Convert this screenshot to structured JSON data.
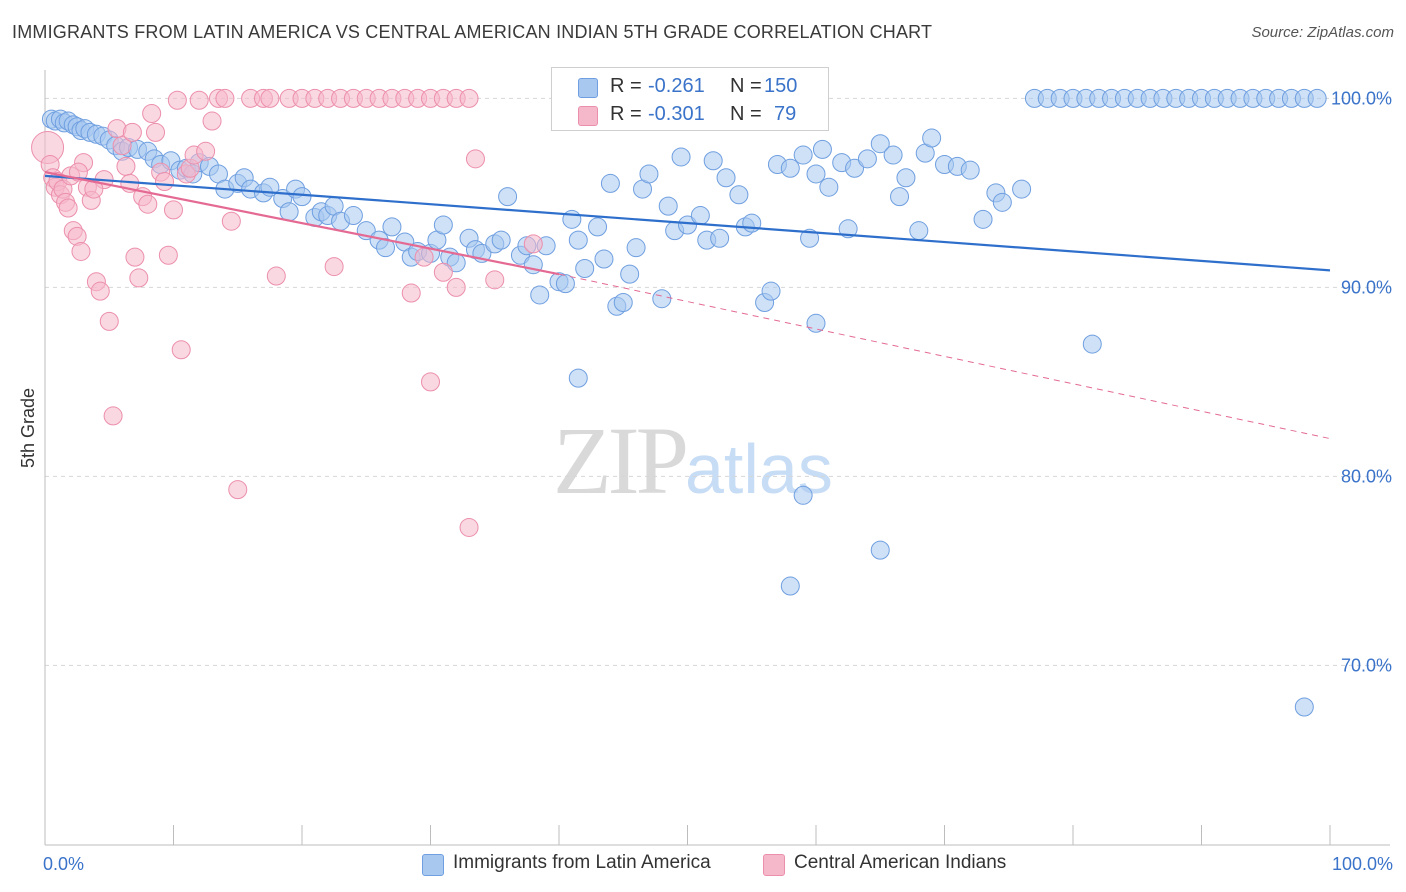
{
  "title": "IMMIGRANTS FROM LATIN AMERICA VS CENTRAL AMERICAN INDIAN 5TH GRADE CORRELATION CHART",
  "source": "Source: ZipAtlas.com",
  "watermark": {
    "zip": "ZIP",
    "atlas": "atlas"
  },
  "legend_top": {
    "rows": [
      {
        "r_label": "R =",
        "r_value": "-0.261",
        "n_label": "N =",
        "n_value": "150",
        "color": "#a8c8f0"
      },
      {
        "r_label": "R =",
        "r_value": "-0.301",
        "n_label": "N =",
        "n_value": "79",
        "color": "#f5b8cb"
      }
    ]
  },
  "colors": {
    "blue_fill": "#a8c8f0",
    "blue_stroke": "#6f9fe0",
    "blue_line": "#2f6fcc",
    "pink_fill": "#f5b8cb",
    "pink_stroke": "#ec8fac",
    "pink_line": "#e46a93",
    "grid": "#d6d6d6",
    "axis_text": "#3a73c9"
  },
  "chart_data": {
    "type": "scatter",
    "title": "IMMIGRANTS FROM LATIN AMERICA VS CENTRAL AMERICAN INDIAN 5TH GRADE CORRELATION CHART",
    "xlabel": "",
    "ylabel": "5th Grade",
    "xlim": [
      0,
      100
    ],
    "ylim": [
      60.5,
      101.5
    ],
    "x_tick_labels": [
      "0.0%",
      "100.0%"
    ],
    "y_ticks": [
      {
        "value": 100,
        "label": "100.0%"
      },
      {
        "value": 90,
        "label": "90.0%"
      },
      {
        "value": 80,
        "label": "80.0%"
      },
      {
        "value": 70,
        "label": "70.0%"
      }
    ],
    "grid": true,
    "legend_position": "bottom",
    "series": [
      {
        "name": "Immigrants from Latin America",
        "color": "#a8c8f0",
        "trend": {
          "x": [
            0,
            100
          ],
          "y": [
            95.9,
            90.9
          ],
          "dashed_to": 100
        },
        "points": [
          [
            0.5,
            98.9
          ],
          [
            0.8,
            98.8
          ],
          [
            1.2,
            98.9
          ],
          [
            1.5,
            98.7
          ],
          [
            1.8,
            98.8
          ],
          [
            2.2,
            98.6
          ],
          [
            2.5,
            98.5
          ],
          [
            2.8,
            98.3
          ],
          [
            3.1,
            98.4
          ],
          [
            3.5,
            98.2
          ],
          [
            4,
            98.1
          ],
          [
            4.5,
            98
          ],
          [
            5,
            97.8
          ],
          [
            5.5,
            97.5
          ],
          [
            6,
            97.2
          ],
          [
            6.5,
            97.4
          ],
          [
            7.2,
            97.3
          ],
          [
            8,
            97.2
          ],
          [
            8.5,
            96.8
          ],
          [
            9,
            96.5
          ],
          [
            9.8,
            96.7
          ],
          [
            10.5,
            96.2
          ],
          [
            11,
            96.3
          ],
          [
            11.5,
            96
          ],
          [
            12,
            96.6
          ],
          [
            12.8,
            96.4
          ],
          [
            13.5,
            96
          ],
          [
            14,
            95.2
          ],
          [
            15,
            95.5
          ],
          [
            15.5,
            95.8
          ],
          [
            16,
            95.2
          ],
          [
            17,
            95
          ],
          [
            17.5,
            95.3
          ],
          [
            18.5,
            94.7
          ],
          [
            19,
            94
          ],
          [
            19.5,
            95.2
          ],
          [
            20,
            94.8
          ],
          [
            21,
            93.7
          ],
          [
            21.5,
            94
          ],
          [
            22,
            93.8
          ],
          [
            22.5,
            94.3
          ],
          [
            23,
            93.5
          ],
          [
            24,
            93.8
          ],
          [
            25,
            93
          ],
          [
            26,
            92.5
          ],
          [
            26.5,
            92.1
          ],
          [
            27,
            93.2
          ],
          [
            28,
            92.4
          ],
          [
            28.5,
            91.6
          ],
          [
            29,
            91.9
          ],
          [
            30,
            91.8
          ],
          [
            30.5,
            92.5
          ],
          [
            31,
            93.3
          ],
          [
            31.5,
            91.6
          ],
          [
            32,
            91.3
          ],
          [
            33,
            92.6
          ],
          [
            33.5,
            92
          ],
          [
            34,
            91.8
          ],
          [
            35,
            92.3
          ],
          [
            35.5,
            92.5
          ],
          [
            36,
            94.8
          ],
          [
            37,
            91.7
          ],
          [
            37.5,
            92.2
          ],
          [
            38,
            91.2
          ],
          [
            38.5,
            89.6
          ],
          [
            39,
            92.2
          ],
          [
            40,
            90.3
          ],
          [
            40.5,
            90.2
          ],
          [
            41,
            93.6
          ],
          [
            41.5,
            92.5
          ],
          [
            42,
            91
          ],
          [
            43,
            93.2
          ],
          [
            43.5,
            91.5
          ],
          [
            44,
            95.5
          ],
          [
            44.5,
            89
          ],
          [
            45,
            89.2
          ],
          [
            45.5,
            90.7
          ],
          [
            46,
            92.1
          ],
          [
            46.5,
            95.2
          ],
          [
            47,
            96
          ],
          [
            48,
            89.4
          ],
          [
            48.5,
            94.3
          ],
          [
            49,
            93
          ],
          [
            49.5,
            96.9
          ],
          [
            50,
            93.3
          ],
          [
            51,
            93.8
          ],
          [
            51.5,
            92.5
          ],
          [
            52,
            96.7
          ],
          [
            52.5,
            92.6
          ],
          [
            53,
            95.8
          ],
          [
            54,
            94.9
          ],
          [
            54.5,
            93.2
          ],
          [
            55,
            93.4
          ],
          [
            56,
            89.2
          ],
          [
            56.5,
            89.8
          ],
          [
            57,
            96.5
          ],
          [
            58,
            96.3
          ],
          [
            59,
            97
          ],
          [
            60,
            96
          ],
          [
            60.5,
            97.3
          ],
          [
            61,
            95.3
          ],
          [
            62,
            96.6
          ],
          [
            62.5,
            93.1
          ],
          [
            63,
            96.3
          ],
          [
            64,
            96.8
          ],
          [
            65,
            97.6
          ],
          [
            66,
            97
          ],
          [
            66.5,
            94.8
          ],
          [
            67,
            95.8
          ],
          [
            68,
            93
          ],
          [
            68.5,
            97.1
          ],
          [
            69,
            97.9
          ],
          [
            70,
            96.5
          ],
          [
            71,
            96.4
          ],
          [
            72,
            96.2
          ],
          [
            73,
            93.6
          ],
          [
            74,
            95
          ],
          [
            74.5,
            94.5
          ],
          [
            76,
            95.2
          ],
          [
            77,
            100
          ],
          [
            78,
            100
          ],
          [
            79,
            100
          ],
          [
            80,
            100
          ],
          [
            81,
            100
          ],
          [
            82,
            100
          ],
          [
            83,
            100
          ],
          [
            84,
            100
          ],
          [
            85,
            100
          ],
          [
            86,
            100
          ],
          [
            87,
            100
          ],
          [
            88,
            100
          ],
          [
            89,
            100
          ],
          [
            90,
            100
          ],
          [
            91,
            100
          ],
          [
            92,
            100
          ],
          [
            93,
            100
          ],
          [
            94,
            100
          ],
          [
            95,
            100
          ],
          [
            96,
            100
          ],
          [
            97,
            100
          ],
          [
            98,
            100
          ],
          [
            99,
            100
          ],
          [
            41.5,
            85.2
          ],
          [
            59,
            79
          ],
          [
            65,
            76.1
          ],
          [
            58,
            74.2
          ],
          [
            60,
            88.1
          ],
          [
            81.5,
            87
          ],
          [
            98,
            67.8
          ],
          [
            59.5,
            92.6
          ]
        ]
      },
      {
        "name": "Central American Indians",
        "color": "#f5b8cb",
        "trend": {
          "x": [
            0,
            40
          ],
          "y": [
            96.1,
            90.7
          ],
          "dashed_to": 100,
          "dashed_end_y": 82
        },
        "points": [
          [
            0.2,
            97.4
          ],
          [
            0.4,
            96.5
          ],
          [
            0.6,
            95.8
          ],
          [
            0.8,
            95.3
          ],
          [
            1,
            95.6
          ],
          [
            1.2,
            94.9
          ],
          [
            1.4,
            95.2
          ],
          [
            1.6,
            94.5
          ],
          [
            1.8,
            94.2
          ],
          [
            2,
            95.9
          ],
          [
            2.2,
            93
          ],
          [
            2.5,
            92.7
          ],
          [
            2.8,
            91.9
          ],
          [
            3,
            96.6
          ],
          [
            3.3,
            95.3
          ],
          [
            3.6,
            94.6
          ],
          [
            4,
            90.3
          ],
          [
            4.3,
            89.8
          ],
          [
            4.6,
            95.7
          ],
          [
            5,
            88.2
          ],
          [
            5.3,
            83.2
          ],
          [
            5.6,
            98.4
          ],
          [
            6,
            97.5
          ],
          [
            6.3,
            96.4
          ],
          [
            6.6,
            95.5
          ],
          [
            7,
            91.6
          ],
          [
            7.3,
            90.5
          ],
          [
            7.6,
            94.8
          ],
          [
            8,
            94.4
          ],
          [
            8.3,
            99.2
          ],
          [
            8.6,
            98.2
          ],
          [
            9,
            96.1
          ],
          [
            9.3,
            95.6
          ],
          [
            9.6,
            91.7
          ],
          [
            10,
            94.1
          ],
          [
            10.3,
            99.9
          ],
          [
            10.6,
            86.7
          ],
          [
            11,
            96
          ],
          [
            11.3,
            96.3
          ],
          [
            11.6,
            97
          ],
          [
            12,
            99.9
          ],
          [
            12.5,
            97.2
          ],
          [
            13,
            98.8
          ],
          [
            13.5,
            100
          ],
          [
            14,
            100
          ],
          [
            14.5,
            93.5
          ],
          [
            15,
            79.3
          ],
          [
            16,
            100
          ],
          [
            17,
            100
          ],
          [
            17.5,
            100
          ],
          [
            18,
            90.6
          ],
          [
            19,
            100
          ],
          [
            20,
            100
          ],
          [
            21,
            100
          ],
          [
            22,
            100
          ],
          [
            23,
            100
          ],
          [
            24,
            100
          ],
          [
            25,
            100
          ],
          [
            26,
            100
          ],
          [
            27,
            100
          ],
          [
            28,
            100
          ],
          [
            29,
            100
          ],
          [
            30,
            100
          ],
          [
            31,
            100
          ],
          [
            32,
            100
          ],
          [
            33,
            100
          ],
          [
            22.5,
            91.1
          ],
          [
            28.5,
            89.7
          ],
          [
            29.5,
            91.6
          ],
          [
            30,
            85
          ],
          [
            31,
            90.8
          ],
          [
            32,
            90
          ],
          [
            33,
            77.3
          ],
          [
            33.5,
            96.8
          ],
          [
            35,
            90.4
          ],
          [
            38,
            92.3
          ],
          [
            3.8,
            95.2
          ],
          [
            6.8,
            98.2
          ],
          [
            2.6,
            96.1
          ]
        ]
      }
    ]
  }
}
